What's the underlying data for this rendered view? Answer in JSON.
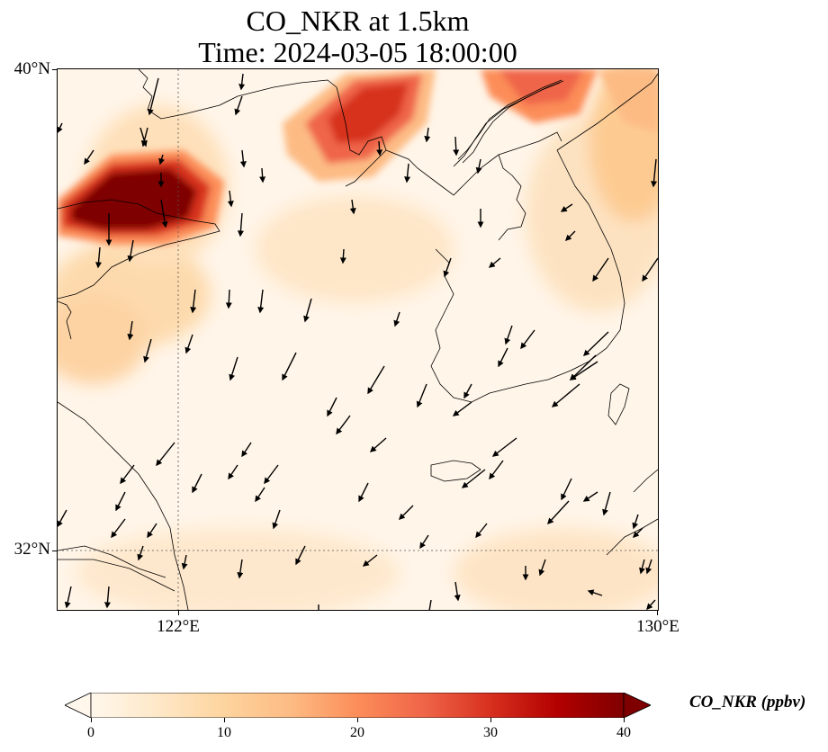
{
  "title_line1": "CO_NKR at 1.5km",
  "title_line2": "Time: 2024-03-05 18:00:00",
  "axes": {
    "lat_labels": [
      "40°N",
      "32°N"
    ],
    "lon_labels": [
      "122°E",
      "130°E"
    ]
  },
  "colorbar": {
    "label": "CO_NKR (ppbv)",
    "ticks": [
      "0",
      "10",
      "20",
      "30",
      "40"
    ],
    "colormap": [
      "#fff7ec",
      "#fee8c8",
      "#fdd49e",
      "#fdbb84",
      "#fc8d59",
      "#ef6548",
      "#d7301f",
      "#b30000",
      "#7f0000"
    ],
    "extend": "both"
  },
  "map_info": {
    "lon_range": [
      120,
      130
    ],
    "lat_range": [
      31,
      40
    ],
    "gridlines": "dotted at 122°E and 32°N",
    "field": "CO_NKR concentration with wind vectors"
  }
}
